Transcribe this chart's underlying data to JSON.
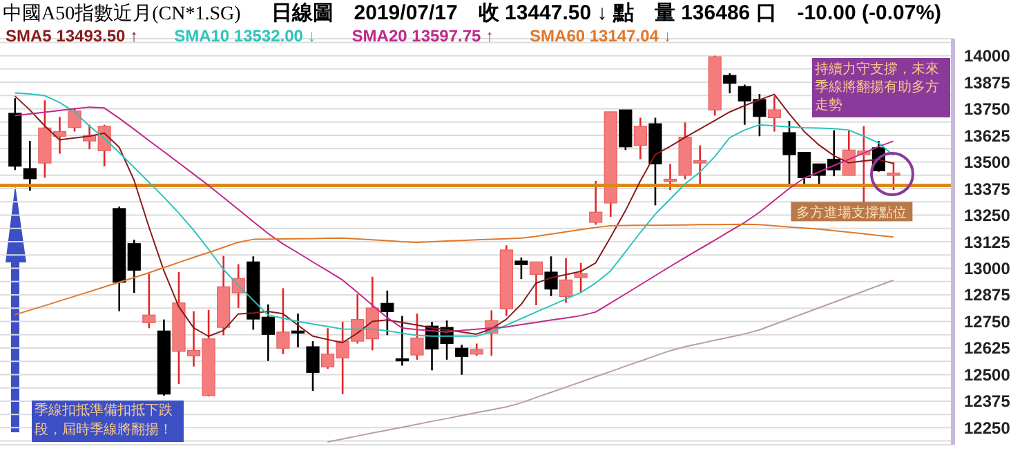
{
  "chart_data": {
    "type": "candlestick",
    "title": "中國A50指數近月(CN*1.SG)",
    "subtitle": "日線圖　2019/07/17　收 13447.50 ↓ 點　量 136486 口　-10.00 (-0.07%)",
    "categories": [
      null,
      null,
      null,
      null,
      null,
      null,
      null,
      null,
      null,
      null,
      null,
      null,
      null,
      null,
      null,
      null,
      null,
      null,
      null,
      null,
      null,
      null,
      null,
      null,
      null,
      null,
      null,
      null,
      null,
      null,
      null,
      null,
      null,
      null,
      null,
      null,
      null,
      null,
      null,
      null,
      null,
      null,
      null,
      null,
      null,
      null,
      null,
      null,
      null,
      null,
      null,
      null,
      null,
      null,
      null,
      null,
      null,
      null,
      null,
      null
    ],
    "ohlc": [
      [
        13729,
        13800,
        13462,
        13480
      ],
      [
        13469,
        13599,
        13365,
        13421
      ],
      [
        13495,
        13790,
        13426,
        13660
      ],
      [
        13621,
        13712,
        13539,
        13643
      ],
      [
        13662,
        13755,
        13643,
        13740
      ],
      [
        13599,
        13675,
        13560,
        13625
      ],
      [
        13553,
        13675,
        13480,
        13668
      ],
      [
        13281,
        13290,
        12798,
        12934
      ],
      [
        13116,
        13134,
        12884,
        12991
      ],
      [
        12744,
        12975,
        12718,
        12780
      ],
      [
        12705,
        12759,
        12401,
        12408
      ],
      [
        12609,
        12982,
        12455,
        12837
      ],
      [
        12588,
        12798,
        12538,
        12614
      ],
      [
        12401,
        12804,
        12397,
        12668
      ],
      [
        12722,
        13058,
        12685,
        12913
      ],
      [
        12884,
        13019,
        12813,
        12952
      ],
      [
        13030,
        13056,
        12711,
        12761
      ],
      [
        12770,
        12830,
        12564,
        12689
      ],
      [
        12624,
        12906,
        12596,
        12700
      ],
      [
        12705,
        12787,
        12628,
        12695
      ],
      [
        12631,
        12657,
        12423,
        12510
      ],
      [
        12536,
        12718,
        12527,
        12596
      ],
      [
        12578,
        12748,
        12408,
        12657
      ],
      [
        12657,
        12878,
        12646,
        12759
      ],
      [
        12668,
        12960,
        12614,
        12813
      ],
      [
        12835,
        12895,
        12685,
        12796
      ],
      [
        12574,
        12776,
        12542,
        12570
      ],
      [
        12592,
        12787,
        12570,
        12672
      ],
      [
        12728,
        12748,
        12520,
        12620
      ],
      [
        12722,
        12754,
        12570,
        12646
      ],
      [
        12624,
        12640,
        12499,
        12585
      ],
      [
        12596,
        12646,
        12588,
        12618
      ],
      [
        12694,
        12802,
        12588,
        12754
      ],
      [
        12809,
        13108,
        12776,
        13086
      ],
      [
        13034,
        13051,
        12949,
        13017
      ],
      [
        12971,
        13030,
        12826,
        13030
      ],
      [
        12982,
        13056,
        12869,
        12902
      ],
      [
        12867,
        13047,
        12837,
        12945
      ],
      [
        12956,
        13025,
        12884,
        12975
      ],
      [
        13216,
        13411,
        13205,
        13264
      ],
      [
        13307,
        13736,
        13242,
        13736
      ],
      [
        13745,
        13745,
        13556,
        13571
      ],
      [
        13578,
        13708,
        13513,
        13668
      ],
      [
        13680,
        13708,
        13296,
        13491
      ],
      [
        13408,
        13491,
        13368,
        13419
      ],
      [
        13437,
        13686,
        13419,
        13617
      ],
      [
        13495,
        13578,
        13387,
        13506
      ],
      [
        13745,
        14000,
        13718,
        13995
      ],
      [
        13907,
        13917,
        13823,
        13870
      ],
      [
        13855,
        13864,
        13675,
        13787
      ],
      [
        13794,
        13820,
        13621,
        13714
      ],
      [
        13708,
        13809,
        13643,
        13745
      ],
      [
        13638,
        13693,
        13394,
        13534
      ],
      [
        13545,
        13545,
        13394,
        13426
      ],
      [
        13491,
        13491,
        13394,
        13437
      ],
      [
        13513,
        13649,
        13433,
        13463
      ],
      [
        13437,
        13647,
        13437,
        13556
      ],
      [
        13534,
        13669,
        13311,
        13552
      ],
      [
        13567,
        13599,
        13454,
        13459
      ],
      [
        13437,
        13498,
        13368,
        13448
      ]
    ],
    "colors": [
      "#000000",
      "#000000",
      "#f47c7c",
      "#f47c7c",
      "#f47c7c",
      "#f47c7c",
      "#f47c7c",
      "#000000",
      "#000000",
      "#f47c7c",
      "#000000",
      "#f47c7c",
      "#f47c7c",
      "#f47c7c",
      "#f47c7c",
      "#f47c7c",
      "#000000",
      "#000000",
      "#f47c7c",
      "#000000",
      "#000000",
      "#f47c7c",
      "#f47c7c",
      "#f47c7c",
      "#f47c7c",
      "#000000",
      "#000000",
      "#f47c7c",
      "#000000",
      "#000000",
      "#000000",
      "#f47c7c",
      "#f47c7c",
      "#f47c7c",
      "#000000",
      "#f47c7c",
      "#000000",
      "#f47c7c",
      "#f47c7c",
      "#f47c7c",
      "#f47c7c",
      "#000000",
      "#f47c7c",
      "#000000",
      "#f47c7c",
      "#f47c7c",
      "#f47c7c",
      "#f47c7c",
      "#000000",
      "#000000",
      "#000000",
      "#f47c7c",
      "#000000",
      "#000000",
      "#000000",
      "#000000",
      "#f47c7c",
      "#f47c7c",
      "#000000",
      "#f47c7c"
    ],
    "series": [
      {
        "type": "line",
        "name": "SMA5 13493.50 ↑",
        "color": "#8b1a1a",
        "values": [
          13810,
          13745,
          13670,
          13604,
          13613,
          13621,
          13636,
          13570,
          13415,
          13195,
          12990,
          12820,
          12720,
          12680,
          12707,
          12785,
          12790,
          12797,
          12786,
          12733,
          12681,
          12665,
          12650,
          12695,
          12750,
          12757,
          12745,
          12733,
          12720,
          12710,
          12700,
          12690,
          12715,
          12760,
          12830,
          12930,
          12955,
          12970,
          12985,
          13025,
          13145,
          13270,
          13410,
          13535,
          13573,
          13615,
          13655,
          13695,
          13735,
          13765,
          13792,
          13818,
          13727,
          13644,
          13580,
          13530,
          13496,
          13505,
          13512,
          13493
        ]
      },
      {
        "type": "line",
        "name": "SMA10 13532.00 ↓",
        "color": "#2cc4bc",
        "values": [
          13825,
          13820,
          13812,
          13780,
          13735,
          13670,
          13610,
          13545,
          13475,
          13405,
          13335,
          13260,
          13180,
          13090,
          12995,
          12920,
          12850,
          12780,
          12765,
          12750,
          12738,
          12726,
          12714,
          12713,
          12713,
          12706,
          12695,
          12684,
          12681,
          12681,
          12681,
          12681,
          12700,
          12732,
          12763,
          12794,
          12824,
          12855,
          12886,
          12930,
          12987,
          13077,
          13168,
          13254,
          13325,
          13396,
          13452,
          13525,
          13614,
          13650,
          13675,
          13670,
          13665,
          13661,
          13659,
          13657,
          13650,
          13622,
          13590,
          13532
        ]
      },
      {
        "type": "line",
        "name": "SMA20 13597.75 ↑",
        "color": "#c0288a",
        "values": [
          13718,
          13726,
          13734,
          13742,
          13750,
          13758,
          13754,
          13706,
          13654,
          13601,
          13549,
          13496,
          13443,
          13390,
          13334,
          13277,
          13220,
          13164,
          13115,
          13073,
          13030,
          12988,
          12945,
          12887,
          12827,
          12768,
          12719,
          12712,
          12706,
          12700,
          12708,
          12713,
          12719,
          12724,
          12735,
          12745,
          12756,
          12766,
          12777,
          12794,
          12836,
          12879,
          12922,
          12965,
          13008,
          13050,
          13091,
          13132,
          13174,
          13215,
          13263,
          13319,
          13375,
          13424,
          13453,
          13483,
          13512,
          13542,
          13572,
          13598
        ]
      },
      {
        "type": "line",
        "name": "SMA60 13147.04 ↓",
        "color": "#e0782a",
        "values": [
          12781,
          12803,
          12824,
          12846,
          12868,
          12890,
          12912,
          12934,
          12956,
          12979,
          13003,
          13027,
          13051,
          13074,
          13098,
          13122,
          13136,
          13137,
          13138,
          13139,
          13140,
          13141,
          13142,
          13138,
          13134,
          13130,
          13125,
          13122,
          13125,
          13128,
          13131,
          13134,
          13136,
          13139,
          13142,
          13150,
          13161,
          13171,
          13182,
          13192,
          13200,
          13201,
          13202,
          13202,
          13203,
          13204,
          13205,
          13205,
          13206,
          13207,
          13205,
          13200,
          13194,
          13189,
          13184,
          13177,
          13170,
          13162,
          13154,
          13147
        ]
      },
      {
        "type": "line",
        "color": "#b8a0a0",
        "values": [
          null,
          null,
          null,
          null,
          null,
          null,
          null,
          null,
          null,
          null,
          null,
          null,
          null,
          null,
          null,
          null,
          null,
          null,
          null,
          null,
          null,
          12183,
          12197,
          12211,
          12225,
          12238,
          12252,
          12266,
          12280,
          12293,
          12307,
          12321,
          12334,
          12348,
          12367,
          12392,
          12416,
          12441,
          12465,
          12490,
          12514,
          12539,
          12563,
          12588,
          12612,
          12631,
          12646,
          12661,
          12676,
          12691,
          12710,
          12736,
          12762,
          12788,
          12814,
          12840,
          12866,
          12892,
          12918,
          12944
        ]
      }
    ],
    "ylim": [
      12170,
      14080
    ],
    "yticks": [
      {
        "value": 12187.5,
        "label": null
      },
      12250,
      {
        "value": 12312.5,
        "label": null
      },
      12375,
      {
        "value": 12437.5,
        "label": null
      },
      12500,
      {
        "value": 12562.5,
        "label": null
      },
      12625,
      {
        "value": 12687.5,
        "label": null
      },
      12750,
      {
        "value": 12812.5,
        "label": null
      },
      12875,
      {
        "value": 12937.5,
        "label": null
      },
      13000,
      {
        "value": 13062.5,
        "label": null
      },
      13125,
      {
        "value": 13187.5,
        "label": null
      },
      13250,
      {
        "value": 13312.5,
        "label": null
      },
      13375,
      {
        "value": 13437.5,
        "label": null
      },
      13500,
      {
        "value": 13562.5,
        "label": null
      },
      13625,
      {
        "value": 13687.5,
        "label": null
      },
      13750,
      {
        "value": 13812.5,
        "label": null
      },
      13875,
      {
        "value": 13937.5,
        "label": null
      },
      14000,
      {
        "value": 14062.5,
        "label": null
      }
    ],
    "tick_labels": "y",
    "grid": "y",
    "ref_lines": [
      {
        "axis": "y",
        "value": 13390,
        "label": "多方進場支撐點位",
        "color": "#d9891c"
      }
    ],
    "annotations": [
      "季線扣抵準備扣抵下跌段，屆時季線將翻揚！",
      "持續力守支撐，未來季線將翻揚有助多方走勢"
    ]
  }
}
